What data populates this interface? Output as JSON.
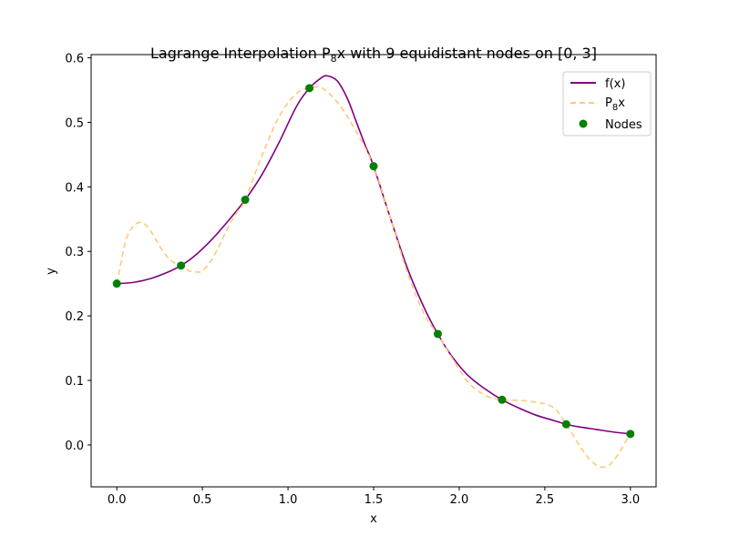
{
  "chart_data": {
    "type": "line",
    "title": {
      "prefix": "Lagrange Interpolation P",
      "subscript": "8",
      "suffix": "x with 9 equidistant nodes on [0, 3]"
    },
    "xlabel": "x",
    "ylabel": "y",
    "xlim": [
      -0.15,
      3.15
    ],
    "ylim": [
      -0.065,
      0.605
    ],
    "xticks": [
      0.0,
      0.5,
      1.0,
      1.5,
      2.0,
      2.5,
      3.0
    ],
    "xtick_labels": [
      "0.0",
      "0.5",
      "1.0",
      "1.5",
      "2.0",
      "2.5",
      "3.0"
    ],
    "yticks": [
      0.0,
      0.1,
      0.2,
      0.3,
      0.4,
      0.5,
      0.6
    ],
    "ytick_labels": [
      "0.0",
      "0.1",
      "0.2",
      "0.3",
      "0.4",
      "0.5",
      "0.6"
    ],
    "grid": false,
    "legend_position": "top-right",
    "nodes": {
      "x": [
        0.0,
        0.375,
        0.75,
        1.125,
        1.5,
        1.875,
        2.25,
        2.625,
        3.0
      ],
      "y": [
        0.25,
        0.278,
        0.38,
        0.553,
        0.432,
        0.172,
        0.07,
        0.032,
        0.017
      ]
    },
    "series": [
      {
        "label": {
          "text": "f(x)",
          "sub": "",
          "tail": ""
        },
        "style": "solid",
        "color": "#800080",
        "x": [
          0.0,
          0.1,
          0.2,
          0.3,
          0.375,
          0.45,
          0.55,
          0.65,
          0.75,
          0.85,
          0.95,
          1.05,
          1.125,
          1.2,
          1.23,
          1.27,
          1.3,
          1.35,
          1.4,
          1.45,
          1.5,
          1.6,
          1.7,
          1.8,
          1.875,
          1.95,
          2.05,
          2.15,
          2.25,
          2.35,
          2.45,
          2.55,
          2.625,
          2.7,
          2.8,
          2.9,
          3.0
        ],
        "y": [
          0.25,
          0.252,
          0.258,
          0.268,
          0.278,
          0.292,
          0.317,
          0.347,
          0.38,
          0.42,
          0.47,
          0.525,
          0.553,
          0.57,
          0.572,
          0.568,
          0.56,
          0.535,
          0.5,
          0.465,
          0.432,
          0.35,
          0.272,
          0.21,
          0.172,
          0.14,
          0.108,
          0.087,
          0.07,
          0.057,
          0.046,
          0.038,
          0.032,
          0.028,
          0.024,
          0.02,
          0.017
        ]
      },
      {
        "label": {
          "text": "P",
          "sub": "8",
          "tail": "x"
        },
        "style": "dashed",
        "color": "#ffc878",
        "x": [
          0.0,
          0.03,
          0.06,
          0.1,
          0.14,
          0.18,
          0.22,
          0.27,
          0.32,
          0.375,
          0.42,
          0.47,
          0.5,
          0.55,
          0.6,
          0.65,
          0.7,
          0.75,
          0.85,
          0.95,
          1.05,
          1.125,
          1.2,
          1.3,
          1.4,
          1.5,
          1.6,
          1.7,
          1.8,
          1.875,
          1.95,
          2.05,
          2.15,
          2.25,
          2.35,
          2.45,
          2.55,
          2.625,
          2.7,
          2.76,
          2.82,
          2.87,
          2.9,
          2.94,
          2.97,
          3.0
        ],
        "y": [
          0.25,
          0.29,
          0.323,
          0.34,
          0.345,
          0.338,
          0.322,
          0.3,
          0.285,
          0.278,
          0.27,
          0.268,
          0.27,
          0.285,
          0.31,
          0.337,
          0.36,
          0.38,
          0.45,
          0.51,
          0.545,
          0.553,
          0.553,
          0.527,
          0.485,
          0.432,
          0.35,
          0.265,
          0.2,
          0.172,
          0.138,
          0.098,
          0.077,
          0.07,
          0.069,
          0.066,
          0.058,
          0.032,
          0.0,
          -0.022,
          -0.034,
          -0.032,
          -0.025,
          -0.01,
          0.004,
          0.017
        ]
      }
    ],
    "node_label": "Nodes",
    "node_color": "#008000"
  }
}
